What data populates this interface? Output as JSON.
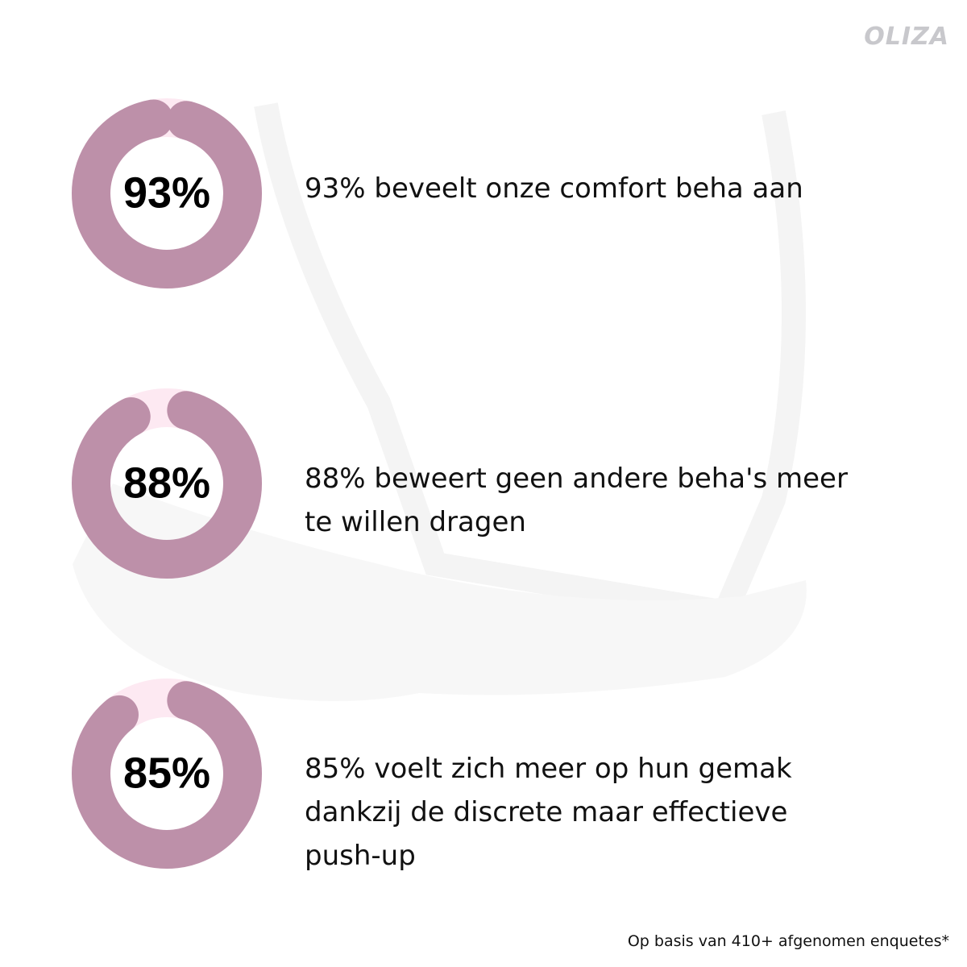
{
  "logo": "OLIZA",
  "items": [
    {
      "value": 93,
      "value_label": "93%",
      "text": "93% beveelt onze comfort beha aan"
    },
    {
      "value": 88,
      "value_label": "88%",
      "text": "88% beweert geen andere beha's meer te willen dragen"
    },
    {
      "value": 85,
      "value_label": "85%",
      "text": "85% voelt zich meer op hun gemak dankzij de discrete maar effectieve push-up"
    }
  ],
  "footnote": "Op basis van 410+ afgenomen enquetes*"
}
